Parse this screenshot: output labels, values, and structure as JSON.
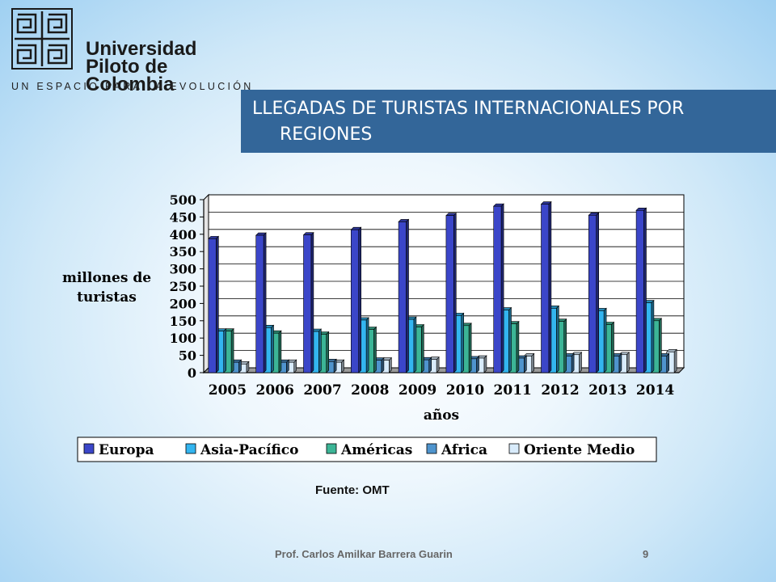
{
  "logo": {
    "name_line1": "Universidad",
    "name_line2": "Piloto de Colombia",
    "tagline": "UN ESPACIO PARA LA EVOLUCIÓN"
  },
  "slide_title": {
    "line1": "LLEGADAS DE TURISTAS INTERNACIONALES POR",
    "line2": "REGIONES"
  },
  "source": "Fuente: OMT",
  "footer": {
    "author": "Prof. Carlos Amilkar Barrera Guarin",
    "page_number": "9"
  },
  "colors": {
    "title_bar": "#336699"
  },
  "chart_data": {
    "type": "bar",
    "title": "",
    "xlabel": "años",
    "ylabel": "millones de turistas",
    "ylim": [
      0,
      500
    ],
    "yticks": [
      0,
      50,
      100,
      150,
      200,
      250,
      300,
      350,
      400,
      450,
      500
    ],
    "grid": true,
    "legend_position": "bottom",
    "categories": [
      "2005",
      "2006",
      "2007",
      "2008",
      "2009",
      "2010",
      "2011",
      "2012",
      "2013",
      "2014"
    ],
    "series": [
      {
        "name": "Europa",
        "color": "#3b46c9",
        "values": [
          387,
          397,
          398,
          413,
          436,
          454,
          481,
          487,
          455,
          469
        ]
      },
      {
        "name": "Asia-Pacífico",
        "color": "#33b5f0",
        "values": [
          120,
          130,
          119,
          152,
          154,
          165,
          181,
          186,
          179,
          202
        ]
      },
      {
        "name": "Américas",
        "color": "#3cb596",
        "values": [
          120,
          114,
          111,
          125,
          132,
          136,
          141,
          148,
          139,
          150
        ]
      },
      {
        "name": "Africa",
        "color": "#4f94cd",
        "values": [
          30,
          30,
          32,
          36,
          37,
          40,
          42,
          48,
          48,
          48
        ]
      },
      {
        "name": "Oriente Medio",
        "color": "#d8ebfb",
        "values": [
          25,
          30,
          30,
          36,
          38,
          42,
          48,
          52,
          52,
          60
        ]
      }
    ]
  }
}
